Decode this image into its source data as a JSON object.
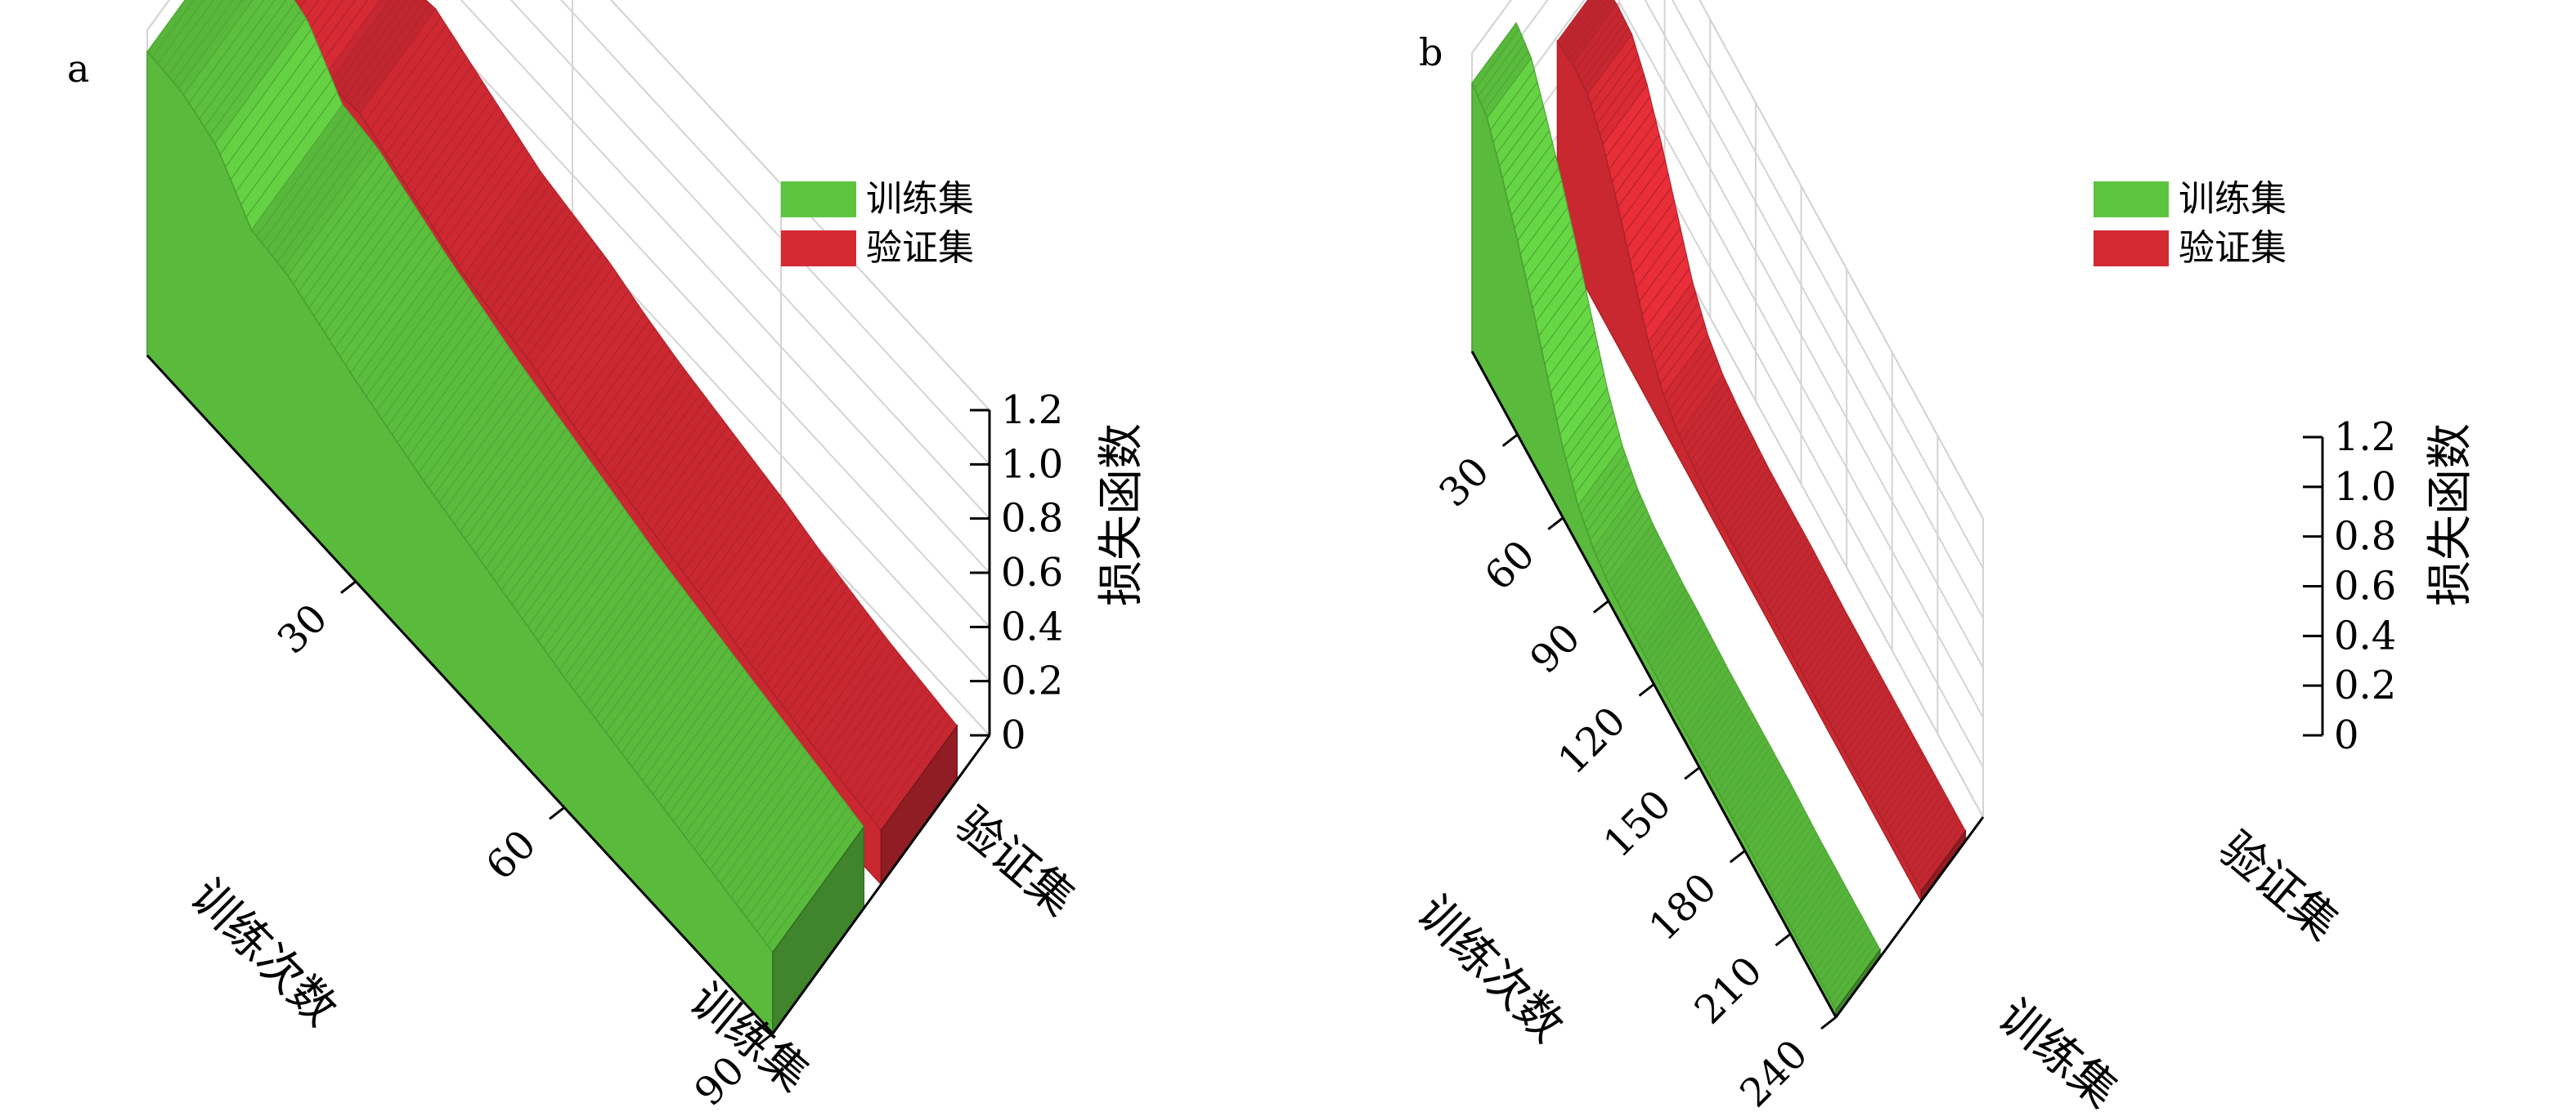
{
  "chart_data": [
    {
      "type": "area",
      "panel_label": "a",
      "zlabel": "损失函数",
      "xlabel": "训练次数",
      "zlim": [
        0,
        1.2
      ],
      "z_ticks": [
        "0",
        "0.2",
        "0.4",
        "0.6",
        "0.8",
        "1.0",
        "1.2"
      ],
      "x_ticks": [
        "30",
        "60",
        "90"
      ],
      "xlim": [
        0,
        90
      ],
      "category_labels": [
        "训练集",
        "验证集"
      ],
      "legend": {
        "placement": "top-right",
        "entries": [
          "训练集",
          "验证集"
        ]
      },
      "grid": true,
      "series": [
        {
          "name": "训练集",
          "color": "#5ec43f",
          "x": [
            1,
            5,
            10,
            15,
            20,
            25,
            30,
            35,
            40,
            45,
            50,
            55,
            60,
            65,
            70,
            75,
            80,
            85,
            90
          ],
          "values": [
            1.12,
            1.11,
            1.05,
            0.88,
            0.86,
            0.8,
            0.74,
            0.69,
            0.64,
            0.6,
            0.56,
            0.52,
            0.48,
            0.45,
            0.42,
            0.39,
            0.36,
            0.33,
            0.3
          ]
        },
        {
          "name": "验证集",
          "color": "#d42a34",
          "x": [
            1,
            5,
            10,
            15,
            20,
            25,
            30,
            35,
            40,
            45,
            50,
            55,
            60,
            65,
            70,
            75,
            80,
            85,
            90
          ],
          "values": [
            0.85,
            0.84,
            0.74,
            0.76,
            0.7,
            0.64,
            0.58,
            0.55,
            0.52,
            0.47,
            0.43,
            0.4,
            0.37,
            0.34,
            0.3,
            0.27,
            0.24,
            0.22,
            0.2
          ]
        }
      ]
    },
    {
      "type": "area",
      "panel_label": "b",
      "zlabel": "损失函数",
      "xlabel": "训练次数",
      "zlim": [
        0,
        1.2
      ],
      "z_ticks": [
        "0",
        "0.2",
        "0.4",
        "0.6",
        "0.8",
        "1.0",
        "1.2"
      ],
      "x_ticks": [
        "30",
        "60",
        "90",
        "120",
        "150",
        "180",
        "210",
        "240"
      ],
      "xlim": [
        0,
        240
      ],
      "category_labels": [
        "训练集",
        "验证集"
      ],
      "legend": {
        "placement": "top-right",
        "entries": [
          "训练集",
          "验证集"
        ]
      },
      "grid": true,
      "series": [
        {
          "name": "训练集",
          "color": "#5ec43f",
          "x": [
            1,
            10,
            20,
            30,
            40,
            50,
            60,
            70,
            80,
            90,
            100,
            110,
            120,
            140,
            160,
            180,
            200,
            220,
            240
          ],
          "values": [
            1.08,
            1.05,
            0.92,
            0.78,
            0.62,
            0.45,
            0.28,
            0.16,
            0.1,
            0.07,
            0.06,
            0.05,
            0.05,
            0.04,
            0.04,
            0.04,
            0.03,
            0.03,
            0.03
          ]
        },
        {
          "name": "验证集",
          "color": "#d42a34",
          "x": [
            1,
            10,
            20,
            30,
            40,
            50,
            60,
            70,
            80,
            90,
            100,
            110,
            120,
            140,
            160,
            180,
            200,
            220,
            240
          ],
          "values": [
            0.78,
            0.8,
            0.79,
            0.7,
            0.56,
            0.4,
            0.24,
            0.14,
            0.09,
            0.07,
            0.06,
            0.05,
            0.05,
            0.05,
            0.04,
            0.04,
            0.04,
            0.04,
            0.04
          ]
        }
      ]
    }
  ]
}
